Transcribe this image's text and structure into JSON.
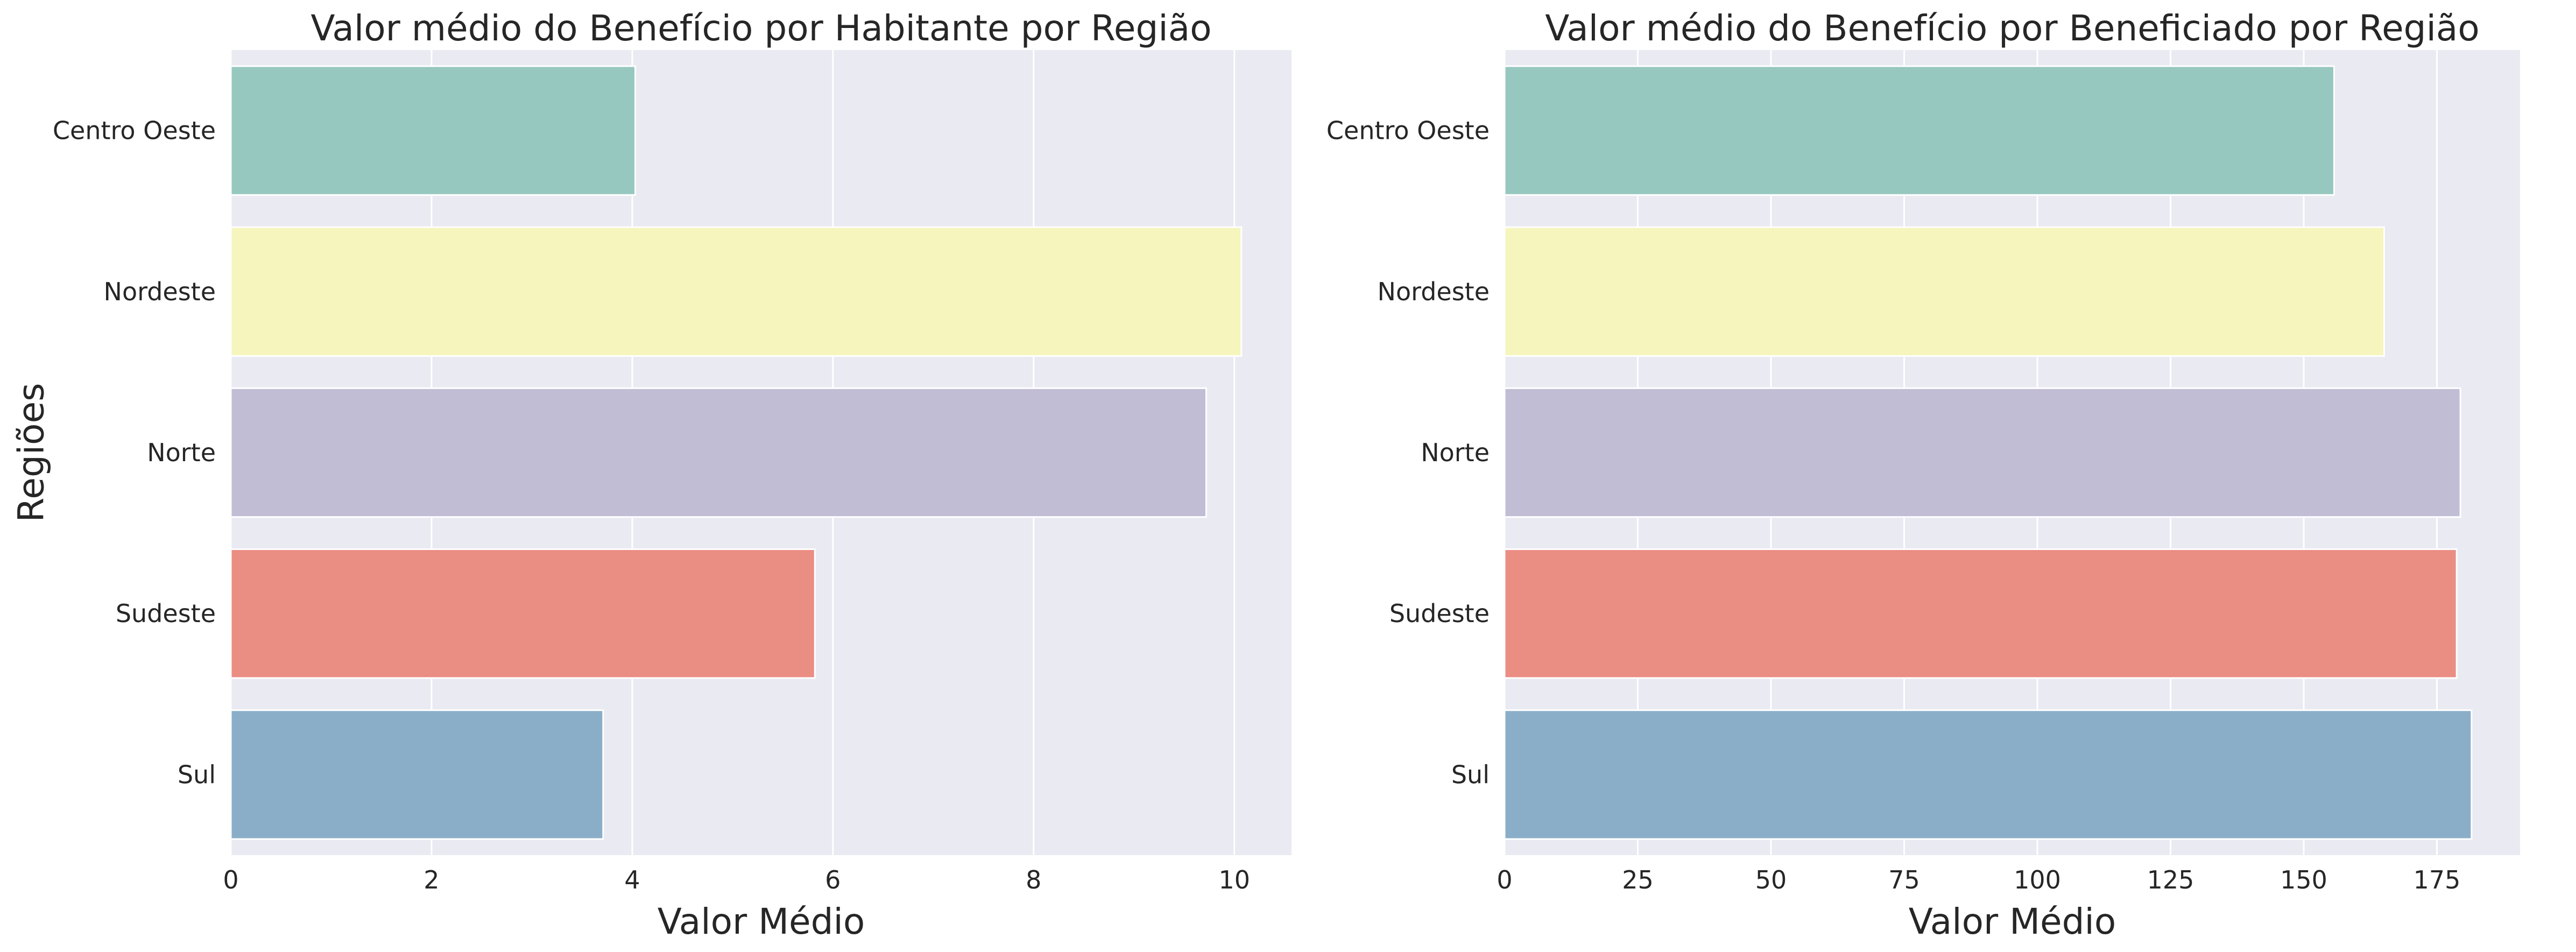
{
  "chart_data": [
    {
      "type": "bar",
      "orientation": "horizontal",
      "title": "Valor médio do Benefício por Habitante por Região",
      "xlabel": "Valor Médio",
      "ylabel": "Regiões",
      "categories": [
        "Centro Oeste",
        "Nordeste",
        "Norte",
        "Sudeste",
        "Sul"
      ],
      "values": [
        4.03,
        10.07,
        9.72,
        5.82,
        3.71
      ],
      "colors": [
        "#96C8BF",
        "#F5F5BD",
        "#C0BDD5",
        "#EA8D83",
        "#8BAEC8"
      ],
      "xlim": [
        0,
        10.57
      ],
      "xticks": [
        0,
        2,
        4,
        6,
        8,
        10
      ],
      "grid": true
    },
    {
      "type": "bar",
      "orientation": "horizontal",
      "title": "Valor médio do Benefício por Beneficiado por Região",
      "xlabel": "Valor Médio",
      "ylabel": "",
      "categories": [
        "Centro Oeste",
        "Nordeste",
        "Norte",
        "Sudeste",
        "Sul"
      ],
      "values": [
        155.7,
        165.1,
        179.4,
        178.7,
        181.5
      ],
      "colors": [
        "#96C8BF",
        "#F5F5BD",
        "#C0BDD5",
        "#EA8D83",
        "#8BAEC8"
      ],
      "xlim": [
        0,
        190.6
      ],
      "xticks": [
        0,
        25,
        50,
        75,
        100,
        125,
        150,
        175
      ],
      "grid": true
    }
  ]
}
